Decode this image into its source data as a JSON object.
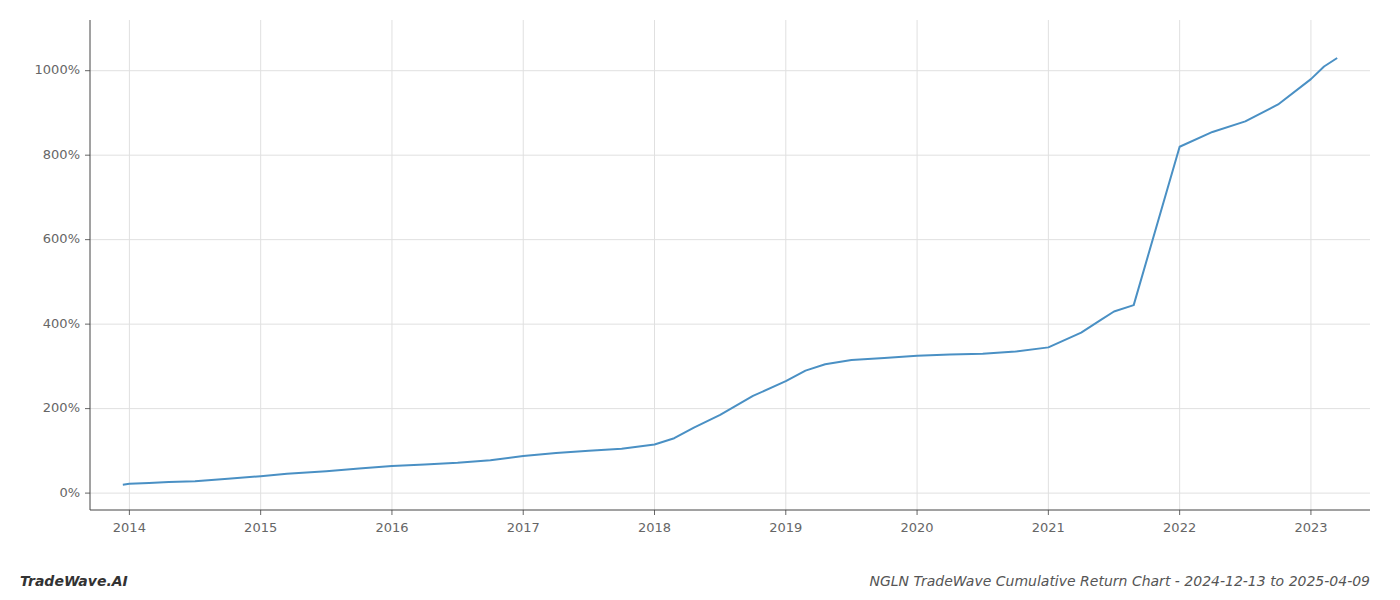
{
  "chart_data": {
    "type": "line",
    "title": "NGLN TradeWave Cumulative Return Chart - 2024-12-13 to 2025-04-09",
    "annotations": [
      "TradeWave.AI"
    ],
    "color": "#4a90c4",
    "x": [
      2013.95,
      2014.0,
      2014.15,
      2014.3,
      2014.5,
      2014.75,
      2015.0,
      2015.2,
      2015.5,
      2015.75,
      2016.0,
      2016.25,
      2016.5,
      2016.75,
      2017.0,
      2017.25,
      2017.5,
      2017.75,
      2018.0,
      2018.15,
      2018.3,
      2018.5,
      2018.75,
      2019.0,
      2019.15,
      2019.3,
      2019.5,
      2019.75,
      2020.0,
      2020.25,
      2020.5,
      2020.75,
      2021.0,
      2021.25,
      2021.4,
      2021.5,
      2021.65,
      2022.0,
      2022.25,
      2022.5,
      2022.75,
      2023.0,
      2023.1,
      2023.2
    ],
    "values": [
      20,
      22,
      24,
      26,
      28,
      34,
      40,
      46,
      52,
      58,
      64,
      68,
      72,
      78,
      88,
      95,
      100,
      105,
      115,
      130,
      155,
      185,
      230,
      265,
      290,
      305,
      315,
      320,
      325,
      328,
      330,
      335,
      345,
      380,
      410,
      430,
      445,
      820,
      855,
      880,
      920,
      980,
      1010,
      1030
    ],
    "xlim": [
      2013.7,
      2023.45
    ],
    "xticks": [
      2014,
      2015,
      2016,
      2017,
      2018,
      2019,
      2020,
      2021,
      2022,
      2023
    ],
    "ylim": [
      -40,
      1120
    ],
    "yticks": [
      {
        "value": 0,
        "label": "0%"
      },
      {
        "value": 200,
        "label": "200%"
      },
      {
        "value": 400,
        "label": "400%"
      },
      {
        "value": 600,
        "label": "600%"
      },
      {
        "value": 800,
        "label": "800%"
      },
      {
        "value": 1000,
        "label": "1000%"
      }
    ],
    "grid": true
  }
}
